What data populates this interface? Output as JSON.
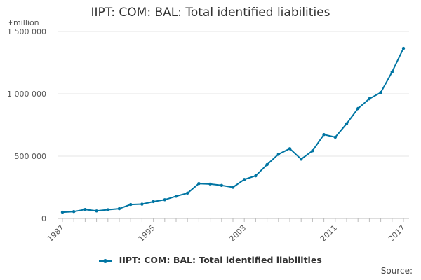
{
  "chart_data": {
    "type": "line",
    "title": "IIPT: COM: BAL: Total identified liabilities",
    "ylabel": "£million",
    "xlabel": "",
    "ylim": [
      0,
      1500000
    ],
    "yticks": [
      0,
      500000,
      1000000,
      1500000
    ],
    "ytick_labels": [
      "0",
      "500 000",
      "1 000 000",
      "1 500 000"
    ],
    "xlim": [
      1987,
      2017
    ],
    "xticks": [
      1987,
      1995,
      2003,
      2011,
      2017
    ],
    "xtick_labels": [
      "1987",
      "1995",
      "2003",
      "2011",
      "2017"
    ],
    "grid": "horizontal",
    "legend_position": "bottom",
    "series": [
      {
        "name": "IIPT: COM: BAL: Total identified liabilities",
        "color": "#0075a3",
        "x": [
          1987,
          1988,
          1989,
          1990,
          1991,
          1992,
          1993,
          1994,
          1995,
          1996,
          1997,
          1998,
          1999,
          2000,
          2001,
          2002,
          2003,
          2004,
          2005,
          2006,
          2007,
          2008,
          2009,
          2010,
          2011,
          2012,
          2013,
          2014,
          2015,
          2016,
          2017
        ],
        "values": [
          50000,
          55000,
          72000,
          60000,
          70000,
          78000,
          112000,
          115000,
          135000,
          150000,
          178000,
          203000,
          280000,
          276000,
          265000,
          250000,
          313000,
          342000,
          432000,
          515000,
          560000,
          476000,
          543000,
          673000,
          652000,
          760000,
          882000,
          960000,
          1010000,
          1175000,
          1365000
        ]
      }
    ]
  },
  "legend": {
    "label": "IIPT: COM: BAL: Total identified liabilities"
  },
  "footer": {
    "source_label": "Source:"
  }
}
